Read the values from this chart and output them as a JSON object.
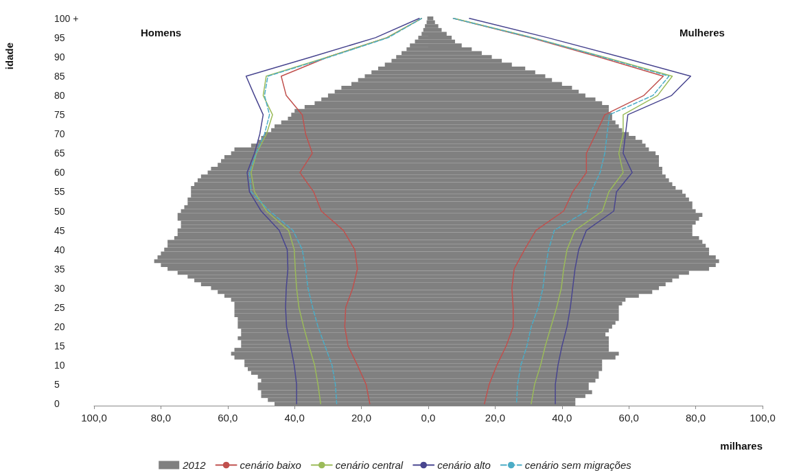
{
  "chart_data": {
    "type": "bar",
    "orientation": "horizontal",
    "stacked": true,
    "marker": "none",
    "grid": false,
    "legend": "bottom",
    "xlabel": "milhares",
    "ylabel": "idade",
    "annotations": [
      "Homens",
      "Mulheres"
    ],
    "xlim": [
      -100,
      100
    ],
    "xticks": [
      {
        "value": -100,
        "label": "100,0"
      },
      {
        "value": -80,
        "label": "80,0"
      },
      {
        "value": -60,
        "label": "60,0"
      },
      {
        "value": -40,
        "label": "40,0"
      },
      {
        "value": -20,
        "label": "20,0"
      },
      {
        "value": 0,
        "label": "0,0"
      },
      {
        "value": 20,
        "label": "20,0"
      },
      {
        "value": 40,
        "label": "40,0"
      },
      {
        "value": 60,
        "label": "60,0"
      },
      {
        "value": 80,
        "label": "80,0"
      },
      {
        "value": 100,
        "label": "100,0"
      }
    ],
    "categories": [
      "100 +",
      null,
      null,
      null,
      null,
      "95",
      null,
      null,
      null,
      null,
      "90",
      null,
      null,
      null,
      null,
      "85",
      null,
      null,
      null,
      null,
      "80",
      null,
      null,
      null,
      null,
      "75",
      null,
      null,
      null,
      null,
      "70",
      null,
      null,
      null,
      null,
      "65",
      null,
      null,
      null,
      null,
      "60",
      null,
      null,
      null,
      null,
      "55",
      null,
      null,
      null,
      null,
      "50",
      null,
      null,
      null,
      null,
      "45",
      null,
      null,
      null,
      null,
      "40",
      null,
      null,
      null,
      null,
      "35",
      null,
      null,
      null,
      null,
      "30",
      null,
      null,
      null,
      null,
      "25",
      null,
      null,
      null,
      null,
      "20",
      null,
      null,
      null,
      null,
      "15",
      null,
      null,
      null,
      null,
      "10",
      null,
      null,
      null,
      null,
      "5",
      null,
      null,
      null,
      null,
      "0"
    ],
    "series": [
      {
        "name": "2012",
        "color": "#808080",
        "values": [
          -0.3,
          -0.5,
          -1,
          -1.5,
          -2,
          -3,
          -4,
          -5.5,
          -6.5,
          -8,
          -9.6,
          -11,
          -13,
          -15,
          -17,
          -19,
          -21,
          -23,
          -26,
          -28,
          -30,
          -32,
          -34,
          -37,
          -40,
          -41,
          -42,
          -44,
          -46,
          -47,
          -49,
          -50,
          -51,
          -53,
          -58,
          -59,
          -61,
          -62,
          -63,
          -65,
          -66,
          -68,
          -69,
          -70,
          -71,
          -71,
          -71,
          -72,
          -72,
          -73,
          -74,
          -75,
          -75,
          -74,
          -74,
          -75,
          -75,
          -76,
          -78,
          -78,
          -79,
          -80,
          -81,
          -82,
          -80,
          -78,
          -75,
          -72,
          -70,
          -68,
          -65,
          -63,
          -61,
          -59,
          -58,
          -58,
          -58,
          -58,
          -57,
          -57,
          -57,
          -56,
          -56,
          -57,
          -56,
          -56,
          -58,
          -59,
          -58,
          -55,
          -55,
          -54,
          -53,
          -51,
          -50,
          -51,
          -51,
          -50,
          -50,
          -48,
          -46
        ]
      },
      {
        "color": "#808080",
        "values": [
          1.5,
          2,
          3,
          4,
          5.5,
          7,
          8,
          10,
          13,
          16,
          19,
          22,
          25,
          29,
          32,
          35,
          37,
          40,
          43,
          45,
          47,
          50,
          52,
          54,
          54,
          55,
          55,
          56,
          57,
          58,
          60,
          62,
          64,
          65,
          66,
          68,
          69,
          69,
          69,
          70,
          70,
          71,
          72,
          73,
          74,
          76,
          77,
          78,
          79,
          79,
          80,
          82,
          81,
          80,
          79,
          79,
          79,
          81,
          82,
          83,
          84,
          84,
          86,
          87,
          86,
          84,
          78,
          75,
          73,
          71,
          69,
          67,
          63,
          59,
          58,
          57,
          57,
          57,
          57,
          56,
          55,
          54,
          53,
          54,
          54,
          54,
          54,
          57,
          56,
          52,
          52,
          52,
          51,
          51,
          50,
          48,
          48,
          49,
          47,
          44,
          44
        ]
      },
      {
        "name": "cenário baixo",
        "type": "line",
        "color": "#c0504d",
        "line_style": "solid",
        "values": [
          -2,
          null,
          null,
          null,
          null,
          -12.4,
          null,
          null,
          null,
          null,
          -30,
          null,
          null,
          null,
          null,
          -44,
          null,
          null,
          null,
          null,
          -42.5,
          null,
          null,
          null,
          null,
          -37.7,
          null,
          null,
          null,
          null,
          -36.7,
          null,
          null,
          null,
          null,
          -34.7,
          null,
          null,
          null,
          null,
          -38.4,
          null,
          null,
          null,
          null,
          -34.3,
          null,
          null,
          null,
          null,
          -32,
          null,
          null,
          null,
          null,
          -25.4,
          null,
          null,
          null,
          null,
          -22,
          null,
          null,
          null,
          null,
          -21.2,
          null,
          null,
          null,
          null,
          -22.6,
          null,
          null,
          null,
          null,
          -24.7,
          null,
          null,
          null,
          null,
          -25,
          null,
          null,
          null,
          null,
          -24,
          null,
          null,
          null,
          null,
          -21.2,
          null,
          null,
          null,
          null,
          -18.6,
          null,
          null,
          null,
          null,
          -17.5
        ]
      },
      {
        "name": "cenário central",
        "type": "line",
        "color": "#9bbb59",
        "line_style": "solid",
        "values": [
          -2,
          null,
          null,
          null,
          null,
          -12.4,
          null,
          null,
          null,
          null,
          -30,
          null,
          null,
          null,
          null,
          -48.5,
          null,
          null,
          null,
          null,
          -49.4,
          null,
          null,
          null,
          null,
          -46.6,
          null,
          null,
          null,
          null,
          -48.4,
          null,
          null,
          null,
          null,
          -51.4,
          null,
          null,
          null,
          null,
          -53,
          null,
          null,
          null,
          null,
          -52,
          null,
          null,
          null,
          null,
          -48.4,
          null,
          null,
          null,
          null,
          -41.8,
          null,
          null,
          null,
          null,
          -40.1,
          null,
          null,
          null,
          null,
          -39.8,
          null,
          null,
          null,
          null,
          -39.4,
          null,
          null,
          null,
          null,
          -38.7,
          null,
          null,
          null,
          null,
          -37.3,
          null,
          null,
          null,
          null,
          -35.7,
          null,
          null,
          null,
          null,
          -34,
          null,
          null,
          null,
          null,
          -33,
          null,
          null,
          null,
          null,
          -32.2
        ]
      },
      {
        "name": "cenário alto",
        "type": "line",
        "color": "#48458f",
        "line_style": "solid",
        "values": [
          -2.7,
          null,
          null,
          null,
          null,
          -15.8,
          null,
          null,
          null,
          null,
          -35,
          null,
          null,
          null,
          null,
          -54.5,
          null,
          null,
          null,
          null,
          -52,
          null,
          null,
          null,
          null,
          -49.4,
          null,
          null,
          null,
          null,
          -50.4,
          null,
          null,
          null,
          null,
          -52,
          null,
          null,
          null,
          null,
          -54.2,
          null,
          null,
          null,
          null,
          -53.5,
          null,
          null,
          null,
          null,
          -50,
          null,
          null,
          null,
          null,
          -44.6,
          null,
          null,
          null,
          null,
          -42.2,
          null,
          null,
          null,
          null,
          -42,
          null,
          null,
          null,
          null,
          -42.5,
          null,
          null,
          null,
          null,
          -42.7,
          null,
          null,
          null,
          null,
          -42.4,
          null,
          null,
          null,
          null,
          -41.2,
          null,
          null,
          null,
          null,
          -40.1,
          null,
          null,
          null,
          null,
          -39.4,
          null,
          null,
          null,
          null,
          -39.4
        ]
      },
      {
        "name": "cenário sem migrações",
        "type": "line",
        "color": "#4bacc6",
        "line_style": "dashed",
        "values": [
          -2,
          null,
          null,
          null,
          null,
          -12,
          null,
          null,
          null,
          null,
          -29.5,
          null,
          null,
          null,
          null,
          -48,
          null,
          null,
          null,
          null,
          -49,
          null,
          null,
          null,
          null,
          -47.5,
          null,
          null,
          null,
          null,
          -49,
          null,
          null,
          null,
          null,
          -51.5,
          null,
          null,
          null,
          null,
          -53.5,
          null,
          null,
          null,
          null,
          -53,
          null,
          null,
          null,
          null,
          -47.5,
          null,
          null,
          null,
          null,
          -40.5,
          null,
          null,
          null,
          null,
          -37.7,
          null,
          null,
          null,
          null,
          -36.7,
          null,
          null,
          null,
          null,
          -36,
          null,
          null,
          null,
          null,
          -34.6,
          null,
          null,
          null,
          null,
          -33,
          null,
          null,
          null,
          null,
          -30.9,
          null,
          null,
          null,
          null,
          -28.8,
          null,
          null,
          null,
          null,
          -27.8,
          null,
          null,
          null,
          null,
          -27.4
        ]
      },
      {
        "type": "line",
        "color": "#c0504d",
        "line_style": "solid",
        "values": [
          7.5,
          null,
          null,
          null,
          null,
          30.5,
          null,
          null,
          null,
          null,
          51,
          null,
          null,
          null,
          null,
          70.3,
          null,
          null,
          null,
          null,
          64.5,
          null,
          null,
          null,
          null,
          52.8,
          null,
          null,
          null,
          null,
          50.1,
          null,
          null,
          null,
          null,
          47.3,
          null,
          null,
          null,
          null,
          47.3,
          null,
          null,
          null,
          null,
          43.2,
          null,
          null,
          null,
          null,
          40.5,
          null,
          null,
          null,
          null,
          32.2,
          null,
          null,
          null,
          null,
          28.8,
          null,
          null,
          null,
          null,
          25.7,
          null,
          null,
          null,
          null,
          25,
          null,
          null,
          null,
          null,
          25.4,
          null,
          null,
          null,
          null,
          25.4,
          null,
          null,
          null,
          null,
          23.3,
          null,
          null,
          null,
          null,
          20.5,
          null,
          null,
          null,
          null,
          18.2,
          null,
          null,
          null,
          null,
          16.8
        ]
      },
      {
        "type": "line",
        "color": "#9bbb59",
        "line_style": "solid",
        "values": [
          7.7,
          null,
          null,
          null,
          null,
          31.3,
          null,
          null,
          null,
          null,
          52.5,
          null,
          null,
          null,
          null,
          73,
          null,
          null,
          null,
          null,
          68.6,
          null,
          null,
          null,
          null,
          58.3,
          null,
          null,
          null,
          null,
          58.3,
          null,
          null,
          null,
          null,
          57,
          null,
          null,
          null,
          null,
          58.3,
          null,
          null,
          null,
          null,
          54,
          null,
          null,
          null,
          null,
          52.1,
          null,
          null,
          null,
          null,
          43.9,
          null,
          null,
          null,
          null,
          41.5,
          null,
          null,
          null,
          null,
          40.5,
          null,
          null,
          null,
          null,
          39.8,
          null,
          null,
          null,
          null,
          38.4,
          null,
          null,
          null,
          null,
          36.7,
          null,
          null,
          null,
          null,
          35,
          null,
          null,
          null,
          null,
          33.6,
          null,
          null,
          null,
          null,
          31.8,
          null,
          null,
          null,
          null,
          30.8
        ]
      },
      {
        "type": "line",
        "color": "#48458f",
        "line_style": "solid",
        "values": [
          12.3,
          null,
          null,
          null,
          null,
          35.7,
          null,
          null,
          null,
          null,
          57.5,
          null,
          null,
          null,
          null,
          78.5,
          null,
          null,
          null,
          null,
          72.8,
          null,
          null,
          null,
          null,
          59.7,
          null,
          null,
          null,
          null,
          59,
          null,
          null,
          null,
          null,
          58.3,
          null,
          null,
          null,
          null,
          61,
          null,
          null,
          null,
          null,
          56.3,
          null,
          null,
          null,
          null,
          55.5,
          null,
          null,
          null,
          null,
          47.3,
          null,
          null,
          null,
          null,
          45,
          null,
          null,
          null,
          null,
          43.9,
          null,
          null,
          null,
          null,
          43.2,
          null,
          null,
          null,
          null,
          42.5,
          null,
          null,
          null,
          null,
          41.5,
          null,
          null,
          null,
          null,
          40,
          null,
          null,
          null,
          null,
          38.8,
          null,
          null,
          null,
          null,
          38,
          null,
          null,
          null,
          null,
          38
        ]
      },
      {
        "type": "line",
        "color": "#4bacc6",
        "line_style": "dashed",
        "values": [
          7.5,
          null,
          null,
          null,
          null,
          31,
          null,
          null,
          null,
          null,
          52,
          null,
          null,
          null,
          null,
          72,
          null,
          null,
          null,
          null,
          67.2,
          null,
          null,
          null,
          null,
          54.2,
          null,
          null,
          null,
          null,
          53.5,
          null,
          null,
          null,
          null,
          52.8,
          null,
          null,
          null,
          null,
          51.4,
          null,
          null,
          null,
          null,
          48.7,
          null,
          null,
          null,
          null,
          47.3,
          null,
          null,
          null,
          null,
          37.7,
          null,
          null,
          null,
          null,
          36,
          null,
          null,
          null,
          null,
          35,
          null,
          null,
          null,
          null,
          34.3,
          null,
          null,
          null,
          null,
          32.9,
          null,
          null,
          null,
          null,
          30.8,
          null,
          null,
          null,
          null,
          29.5,
          null,
          null,
          null,
          null,
          27.7,
          null,
          null,
          null,
          null,
          26.7,
          null,
          null,
          null,
          null,
          26.4
        ]
      }
    ]
  }
}
